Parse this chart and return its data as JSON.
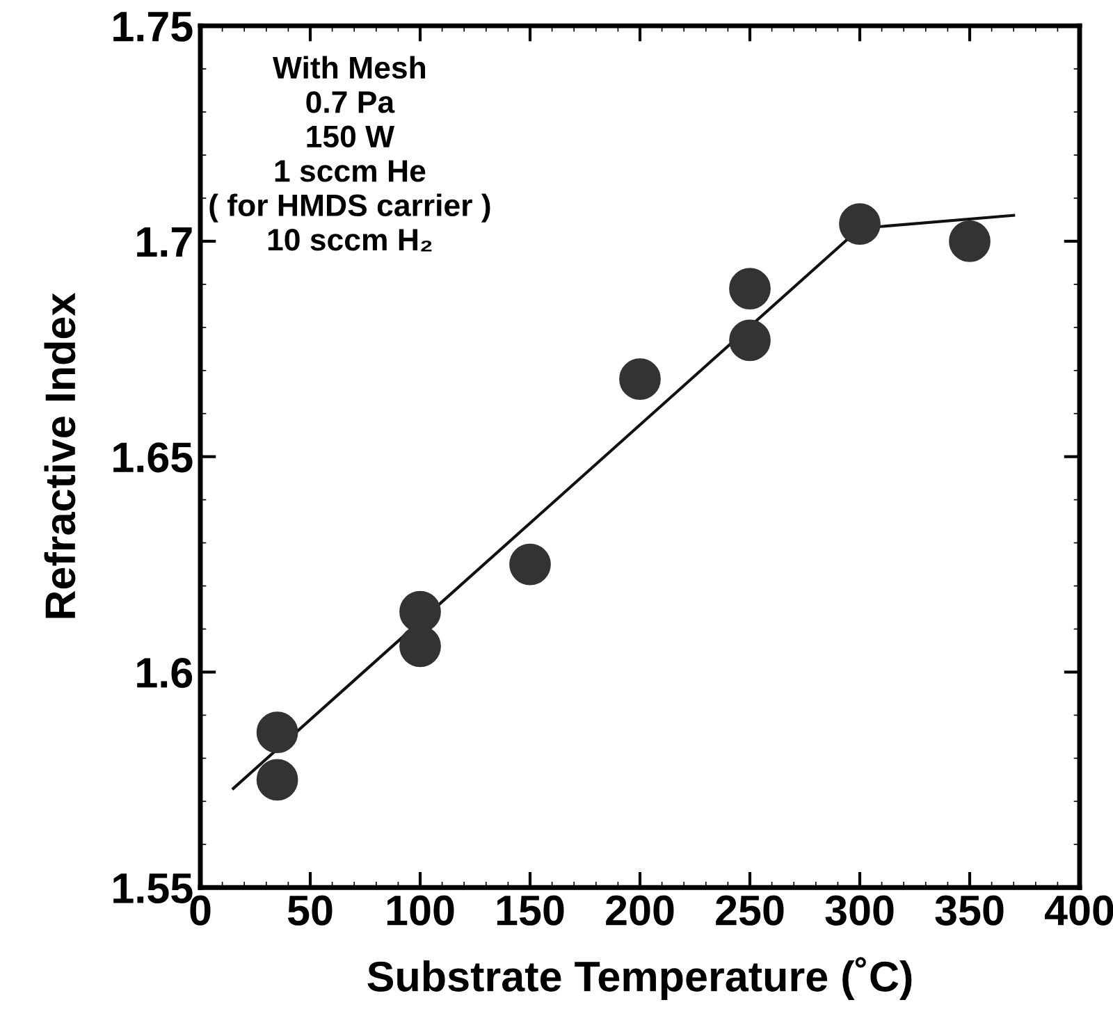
{
  "chart_data": {
    "type": "scatter",
    "xlabel": "Substrate Temperature (˚C)",
    "ylabel": "Refractive Index",
    "xlim": [
      0,
      400
    ],
    "xticks": [
      0,
      50,
      100,
      150,
      200,
      250,
      300,
      350,
      400
    ],
    "ylim": [
      1.55,
      1.75
    ],
    "yticks": [
      1.55,
      1.6,
      1.65,
      1.7,
      1.75
    ],
    "grid": false,
    "legend": false,
    "annotations": [
      "With Mesh\n0.7 Pa\n150 W\n1 sccm He\n( for HMDS carrier )\n10 sccm H₂"
    ],
    "series": [
      {
        "marker": "circle",
        "color": "#333333",
        "x": [
          35,
          35,
          100,
          100,
          150,
          200,
          250,
          250,
          300,
          350
        ],
        "values": [
          1.586,
          1.575,
          1.614,
          1.606,
          1.625,
          1.668,
          1.689,
          1.677,
          1.704,
          1.7
        ]
      },
      {
        "type": "line",
        "marker": "none",
        "color": "#111111",
        "line_style": "solid",
        "x": [
          15,
          300,
          370
        ],
        "values": [
          1.573,
          1.703,
          1.706
        ]
      }
    ]
  }
}
